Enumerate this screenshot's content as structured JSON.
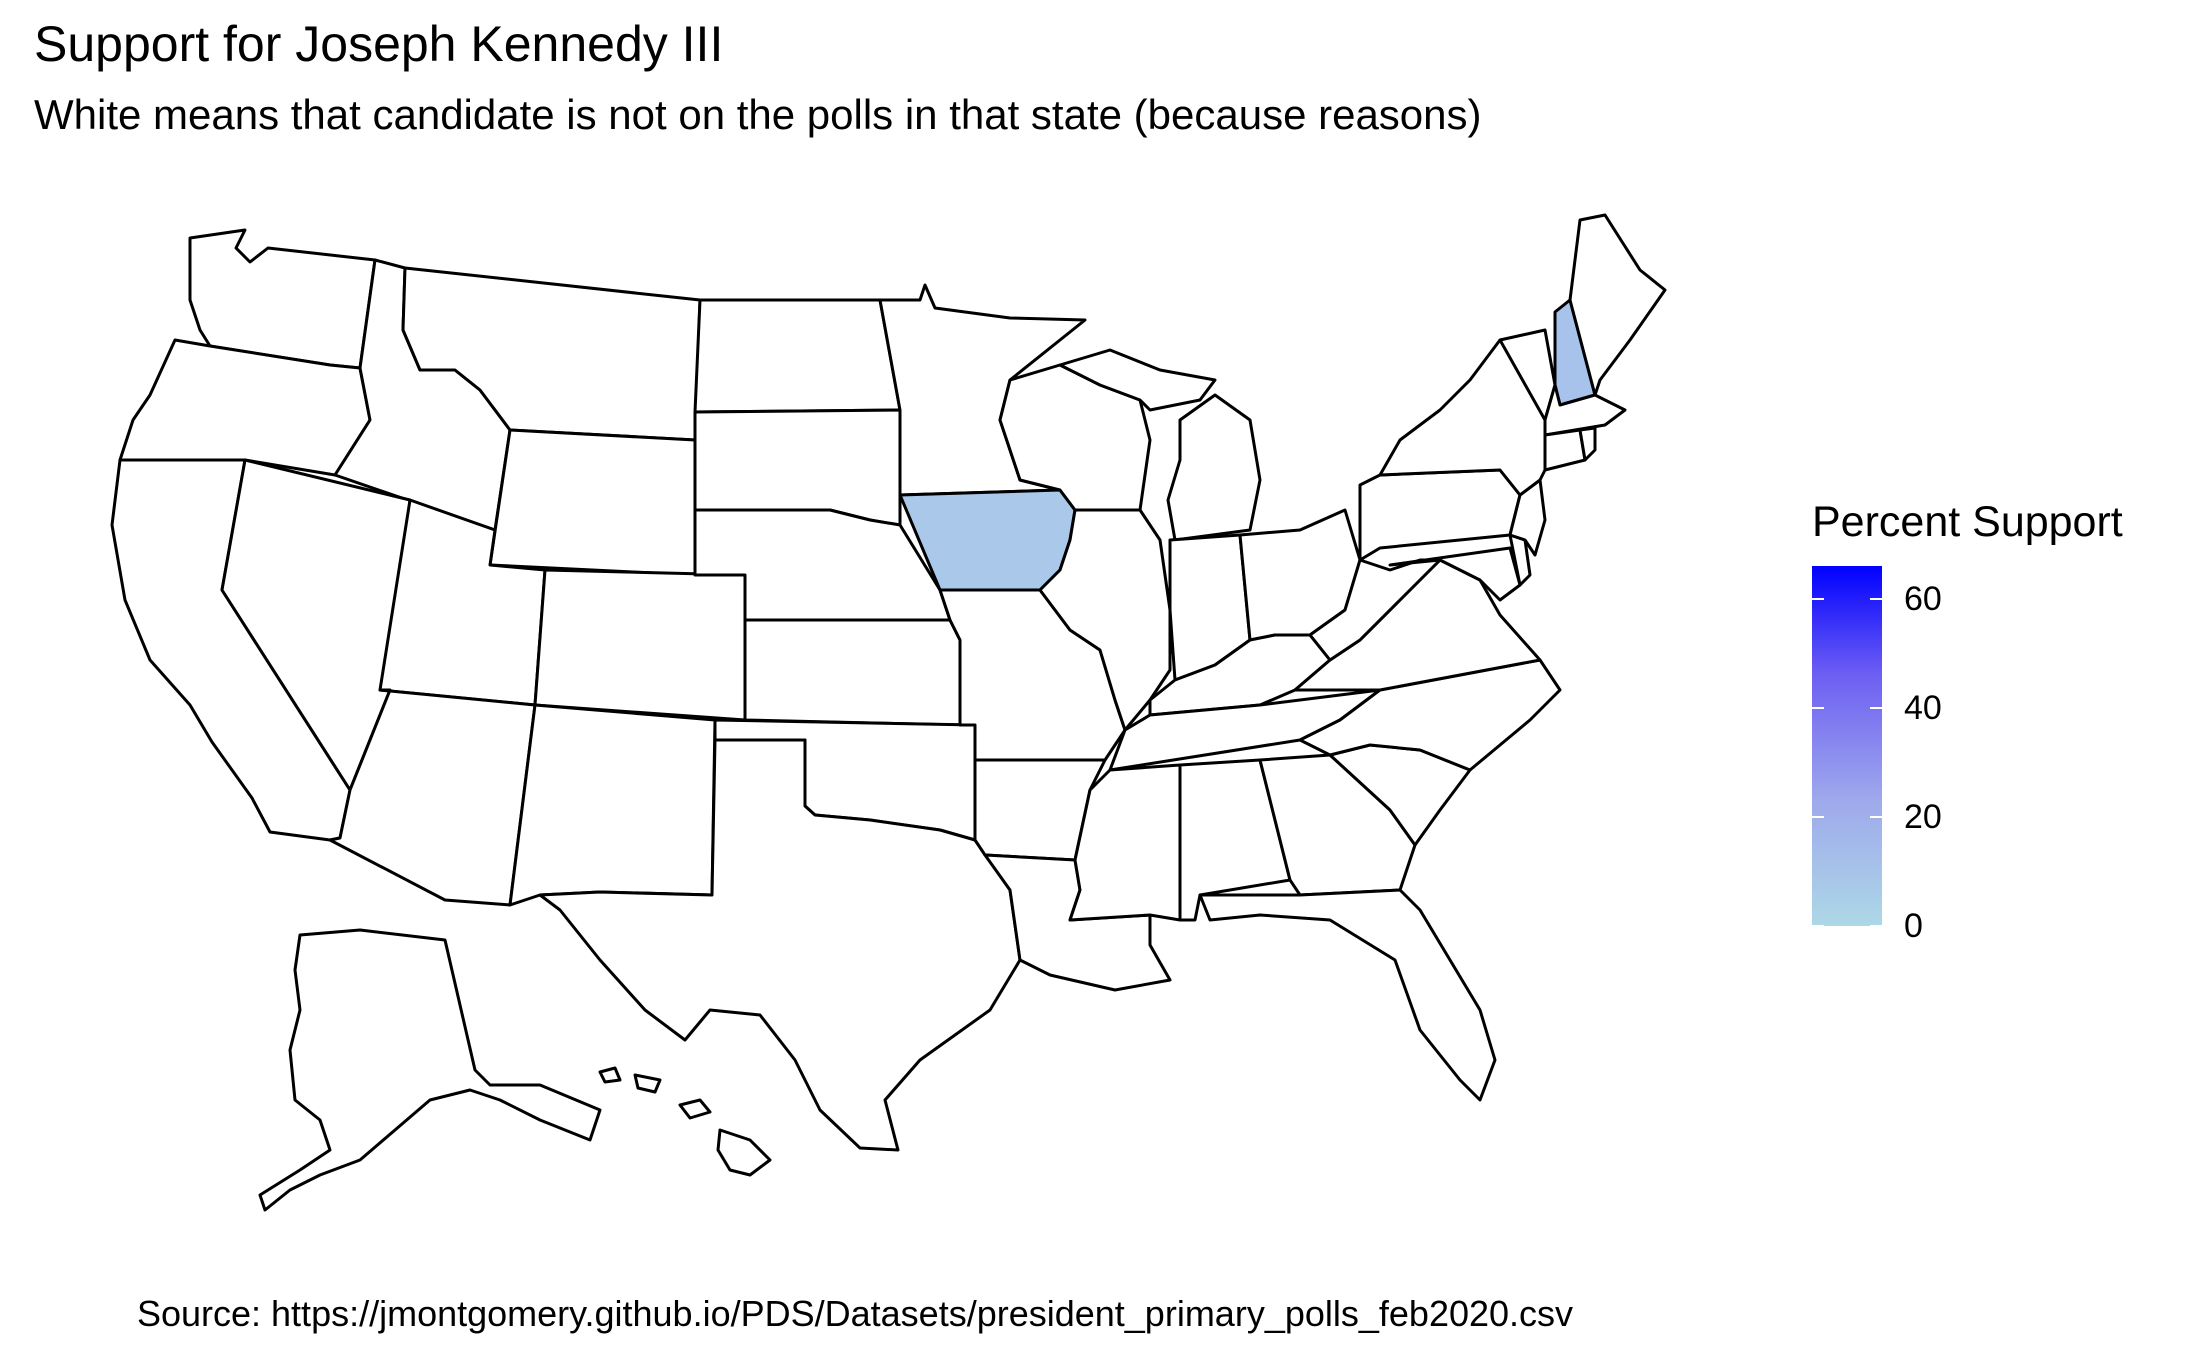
{
  "title": "Support for Joseph Kennedy III",
  "subtitle": "White means that candidate is not on the polls in that state (because reasons)",
  "caption": "Source: https://jmontgomery.github.io/PDS/Datasets/president_primary_polls_feb2020.csv",
  "legend": {
    "title": "Percent Support",
    "ticks": [
      "0",
      "20",
      "40",
      "60"
    ],
    "min": 0,
    "max": 66,
    "low_color": "#ADD8E6",
    "high_color": "#0000FF"
  },
  "colors": {
    "no_poll_fill": "#FFFFFF",
    "border": "#000000"
  },
  "states_with_data": [
    {
      "state": "Iowa",
      "percent_support": 4,
      "fill": "#A9C8EA"
    },
    {
      "state": "New Hampshire",
      "percent_support": 7,
      "fill": "#A7C3EB"
    }
  ]
}
